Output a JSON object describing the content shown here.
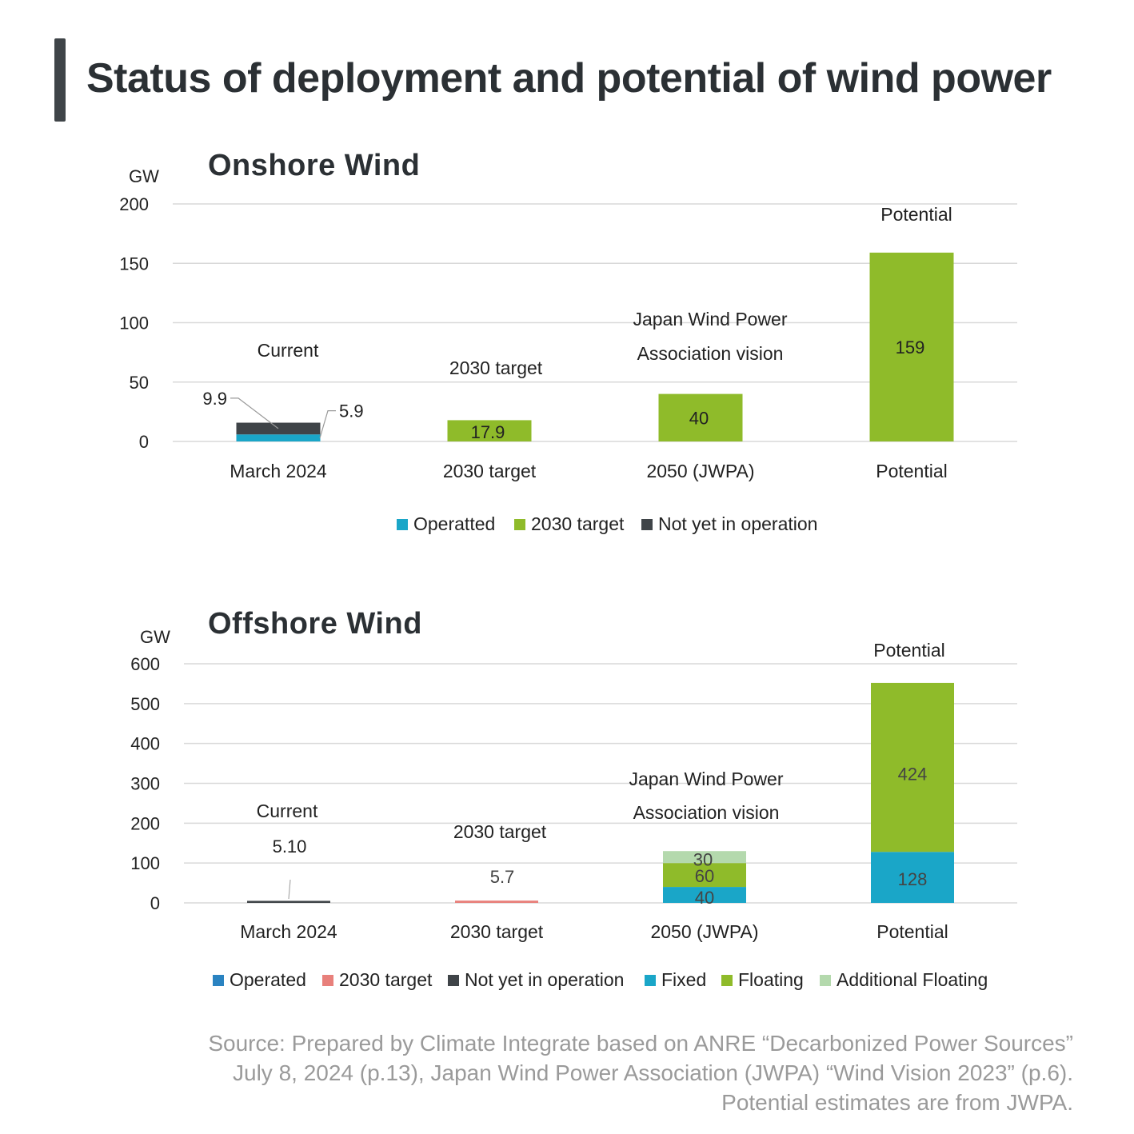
{
  "title": "Status of deployment and potential of wind power",
  "colors": {
    "operated": "#1aa6c8",
    "operated_offshore": "#2a83c1",
    "target_2030": "#8fbb2a",
    "target_2030_offshore": "#e8807b",
    "not_yet": "#3f4448",
    "fixed": "#1aa6c8",
    "floating": "#8fbb2a",
    "additional_floating": "#b4d9ad",
    "grid": "#d9d9d9"
  },
  "chart_data": [
    {
      "id": "onshore",
      "type": "bar",
      "stacked": true,
      "title": "Onshore Wind",
      "ylabel": "GW",
      "ylim": [
        0,
        200
      ],
      "yticks": [
        0,
        50,
        100,
        150,
        200
      ],
      "categories": [
        "March 2024",
        "2030 target",
        "2050 (JWPA)",
        "Potential"
      ],
      "category_labels": [
        [
          "Current"
        ],
        [
          "2030 target"
        ],
        [
          "Japan Wind Power",
          "Association vision"
        ],
        [
          "Potential"
        ]
      ],
      "series": [
        {
          "name": "Operatted",
          "color_key": "operated",
          "values": [
            5.9,
            null,
            null,
            null
          ]
        },
        {
          "name": "2030 target",
          "color_key": "target_2030",
          "values": [
            null,
            17.9,
            40,
            159
          ]
        },
        {
          "name": "Not yet in operation",
          "color_key": "not_yet",
          "values": [
            9.9,
            null,
            null,
            null
          ]
        }
      ],
      "legend": [
        "Operatted",
        "2030 target",
        "Not yet in operation"
      ],
      "legend_colors": [
        "operated",
        "target_2030",
        "not_yet"
      ]
    },
    {
      "id": "offshore",
      "type": "bar",
      "stacked": true,
      "title": "Offshore Wind",
      "ylabel": "GW",
      "ylim": [
        0,
        600
      ],
      "yticks": [
        0,
        100,
        200,
        300,
        400,
        500,
        600
      ],
      "categories": [
        "March 2024",
        "2030 target",
        "2050 (JWPA)",
        "Potential"
      ],
      "category_labels": [
        [
          "Current"
        ],
        [
          "2030 target"
        ],
        [
          "Japan Wind Power",
          "Association vision"
        ],
        [
          "Potential"
        ]
      ],
      "series": [
        {
          "name": "Not yet in operation",
          "color_key": "not_yet",
          "values": [
            5.1,
            null,
            null,
            null
          ]
        },
        {
          "name": "2030 target",
          "color_key": "target_2030_offshore",
          "values": [
            null,
            5.7,
            null,
            null
          ]
        },
        {
          "name": "Fixed",
          "color_key": "fixed",
          "values": [
            null,
            null,
            40,
            128
          ]
        },
        {
          "name": "Floating",
          "color_key": "floating",
          "values": [
            null,
            null,
            60,
            424
          ]
        },
        {
          "name": "Additional Floating",
          "color_key": "additional_floating",
          "values": [
            null,
            null,
            30,
            null
          ]
        }
      ],
      "legend": [
        "Operated",
        "2030 target",
        "Not yet in operation",
        "Fixed",
        "Floating",
        "Additional Floating"
      ],
      "legend_colors": [
        "operated_offshore",
        "target_2030_offshore",
        "not_yet",
        "fixed",
        "floating",
        "additional_floating"
      ]
    }
  ],
  "source": [
    "Source: Prepared by Climate Integrate based on ANRE “Decarbonized Power Sources”",
    "July 8, 2024 (p.13), Japan Wind Power Association (JWPA) “Wind Vision 2023” (p.6).",
    "Potential estimates are from JWPA."
  ]
}
